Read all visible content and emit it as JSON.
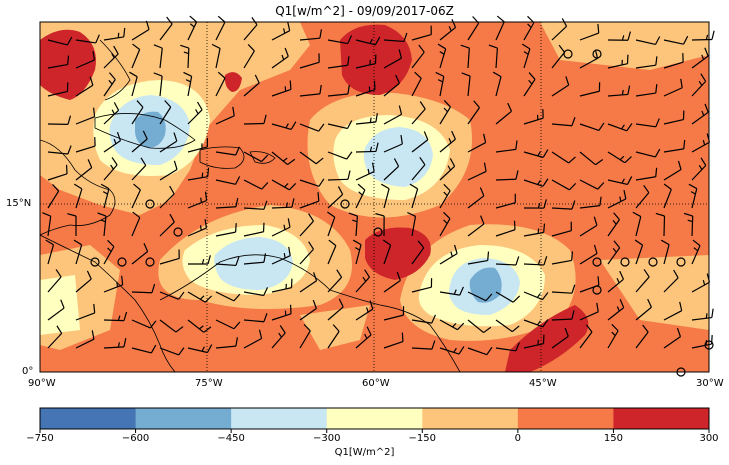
{
  "title": "Q1[w/m^2] - 09/09/2017-06Z",
  "map": {
    "lon_range": [
      -90,
      -30
    ],
    "lat_range": [
      0,
      31
    ],
    "lat_labels": [
      "15°N",
      "0°"
    ],
    "lon_labels": [
      "90°W",
      "75°W",
      "60°W",
      "45°W",
      "30°W"
    ],
    "grid_lons": [
      -75,
      -60,
      -45
    ],
    "grid_lats": [
      15
    ]
  },
  "colorbar": {
    "label": "Q1[W/m^2]",
    "ticks": [
      "−750",
      "−600",
      "−450",
      "−300",
      "−150",
      "0",
      "150",
      "300"
    ],
    "bins": [
      {
        "range": [
          -750,
          -600
        ],
        "color": "#4575b4"
      },
      {
        "range": [
          -600,
          -450
        ],
        "color": "#74add1"
      },
      {
        "range": [
          -450,
          -300
        ],
        "color": "#c9e6f3"
      },
      {
        "range": [
          -300,
          -150
        ],
        "color": "#ffffbf"
      },
      {
        "range": [
          -150,
          0
        ],
        "color": "#fdc57b"
      },
      {
        "range": [
          0,
          150
        ],
        "color": "#f57a48"
      },
      {
        "range": [
          150,
          300
        ],
        "color": "#cd2529"
      }
    ]
  },
  "colors": {
    "background": "#f57a48",
    "land_line": "#000000",
    "wind_barb": "#000000"
  }
}
